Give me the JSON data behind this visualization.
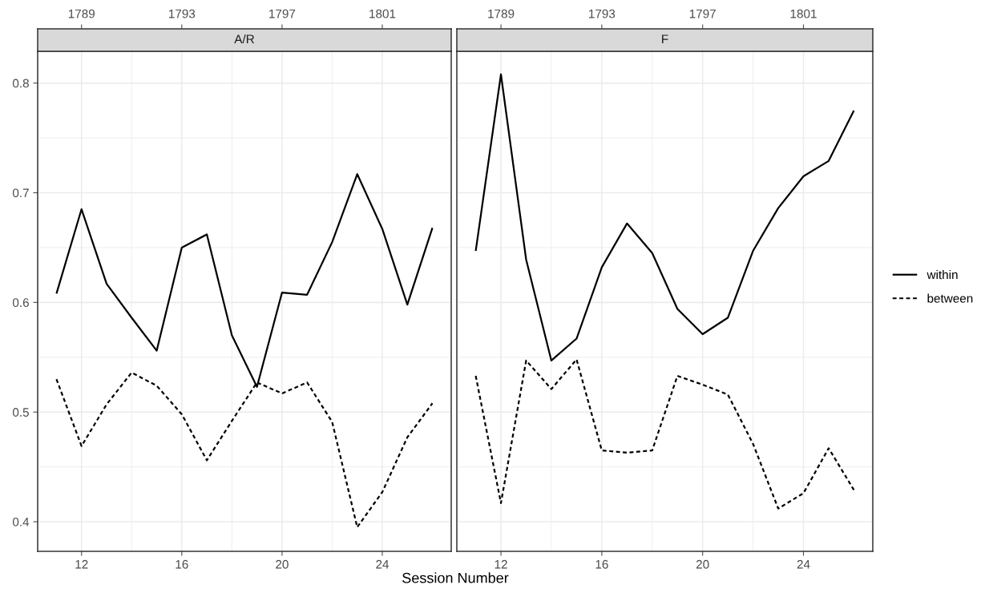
{
  "chart_data": [
    {
      "type": "line",
      "title": "A/R",
      "xlabel": "Session Number",
      "x": [
        11,
        12,
        13,
        14,
        15,
        16,
        17,
        18,
        19,
        20,
        21,
        22,
        23,
        24,
        25,
        26
      ],
      "series": [
        {
          "name": "within",
          "color": "#000000",
          "line_style": "solid",
          "values": [
            0.608,
            0.685,
            0.617,
            0.586,
            0.556,
            0.65,
            0.662,
            0.57,
            0.523,
            0.609,
            0.607,
            0.655,
            0.717,
            0.667,
            0.598,
            0.668
          ]
        },
        {
          "name": "between",
          "color": "#000000",
          "line_style": "dashed",
          "values": [
            0.53,
            0.469,
            0.507,
            0.536,
            0.524,
            0.498,
            0.456,
            0.492,
            0.527,
            0.517,
            0.527,
            0.491,
            0.395,
            0.427,
            0.477,
            0.508
          ]
        }
      ],
      "xlim": [
        10.25,
        26.75
      ],
      "xticks": [
        12,
        16,
        20,
        24
      ],
      "x2lim": [
        1787.25,
        1803.75
      ],
      "x2ticks": [
        1789,
        1793,
        1797,
        1801
      ],
      "ylim": [
        0.373,
        0.829
      ],
      "yticks": [
        {
          "value": 0.4,
          "label": "0.4"
        },
        {
          "value": 0.5,
          "label": "0.5"
        },
        {
          "value": 0.6,
          "label": "0.6"
        },
        {
          "value": 0.7,
          "label": "0.7"
        },
        {
          "value": 0.8,
          "label": "0.8"
        }
      ],
      "grid": true,
      "legend": "right"
    },
    {
      "type": "line",
      "title": "F",
      "x": [
        11,
        12,
        13,
        14,
        15,
        16,
        17,
        18,
        19,
        20,
        21,
        22,
        23,
        24,
        25,
        26
      ],
      "series": [
        {
          "color": "#000000",
          "line_style": "solid",
          "values": [
            0.647,
            0.808,
            0.639,
            0.547,
            0.567,
            0.632,
            0.672,
            0.645,
            0.594,
            0.571,
            0.586,
            0.647,
            0.686,
            0.715,
            0.729,
            0.775
          ]
        },
        {
          "color": "#000000",
          "line_style": "dashed",
          "values": [
            0.533,
            0.417,
            0.547,
            0.521,
            0.548,
            0.465,
            0.463,
            0.465,
            0.533,
            0.525,
            0.516,
            0.471,
            0.412,
            0.426,
            0.467,
            0.429
          ]
        }
      ],
      "xlim": [
        10.25,
        26.75
      ],
      "xticks": [
        12,
        16,
        20,
        24
      ],
      "x2lim": [
        1787.25,
        1803.75
      ],
      "x2ticks": [
        1789,
        1793,
        1797,
        1801
      ],
      "ylim": [
        0.373,
        0.829
      ],
      "yticks": [
        {
          "value": 0.4,
          "label": null
        },
        {
          "value": 0.5,
          "label": null
        },
        {
          "value": 0.6,
          "label": null
        },
        {
          "value": 0.7,
          "label": null
        },
        {
          "value": 0.8,
          "label": null
        }
      ],
      "grid": true,
      "tick_labels": "x"
    }
  ]
}
